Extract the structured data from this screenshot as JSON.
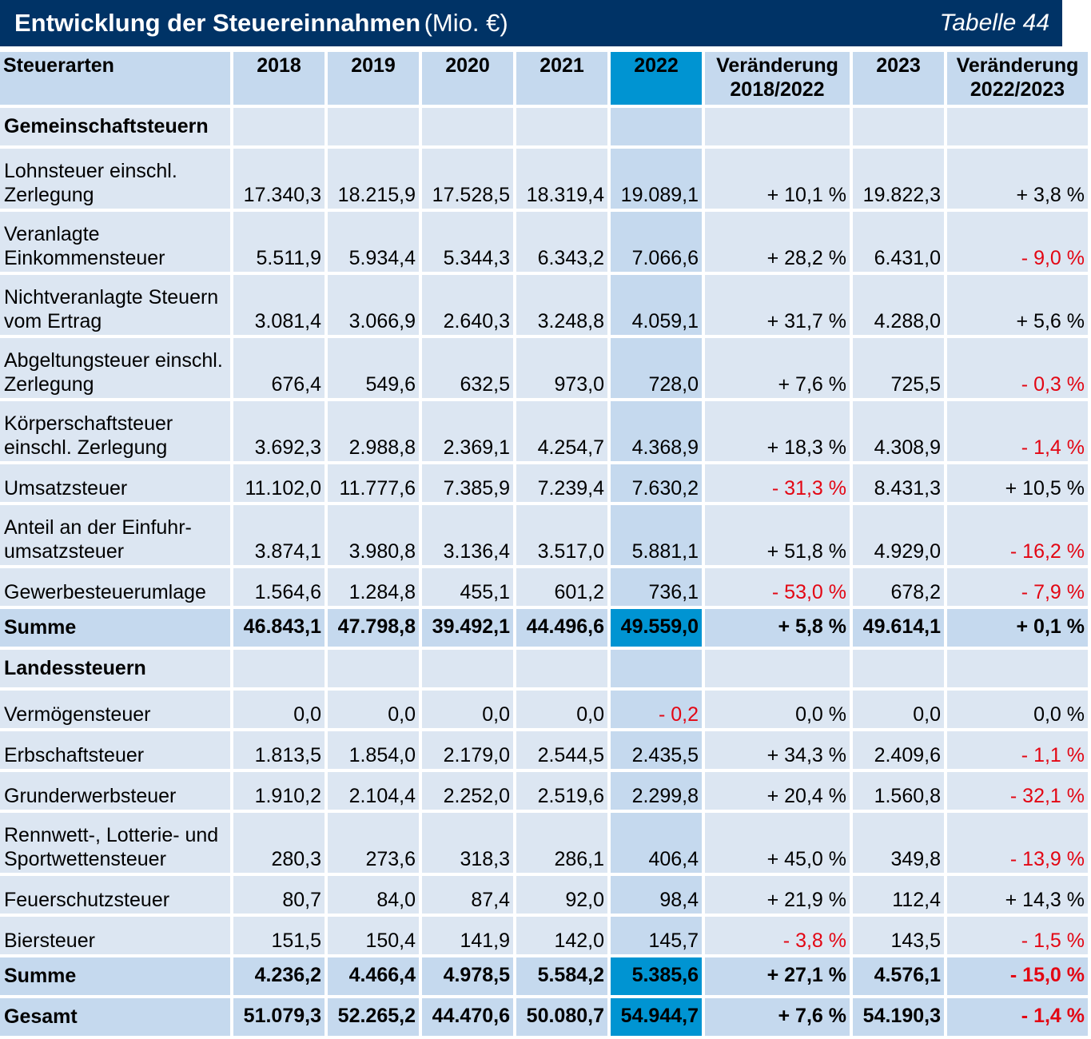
{
  "header": {
    "title": "Entwicklung der Steuereinnahmen",
    "unit": "(Mio. €)",
    "table_label": "Tabelle 44"
  },
  "columns": [
    "Steuerarten",
    "2018",
    "2019",
    "2020",
    "2021",
    "2022",
    "Veränderung 2018/2022",
    "2023",
    "Veränderung 2022/2023"
  ],
  "rows": [
    {
      "type": "section",
      "label": "Gemeinschaftsteuern",
      "cells": [
        "",
        "",
        "",
        "",
        "",
        "",
        "",
        ""
      ]
    },
    {
      "type": "data",
      "label": "Lohnsteuer einschl. Zerlegung",
      "cells": [
        "17.340,3",
        "18.215,9",
        "17.528,5",
        "18.319,4",
        "19.089,1",
        "+ 10,1 %",
        "19.822,3",
        "+ 3,8 %"
      ]
    },
    {
      "type": "data",
      "label": "Veranlagte Einkommensteuer",
      "cells": [
        "5.511,9",
        "5.934,4",
        "5.344,3",
        "6.343,2",
        "7.066,6",
        "+ 28,2 %",
        "6.431,0",
        "- 9,0 %"
      ]
    },
    {
      "type": "data",
      "label": "Nichtveranlagte Steuern vom Ertrag",
      "cells": [
        "3.081,4",
        "3.066,9",
        "2.640,3",
        "3.248,8",
        "4.059,1",
        "+ 31,7 %",
        "4.288,0",
        "+ 5,6 %"
      ]
    },
    {
      "type": "data",
      "label": "Abgeltungsteuer einschl. Zerlegung",
      "cells": [
        "676,4",
        "549,6",
        "632,5",
        "973,0",
        "728,0",
        "+ 7,6 %",
        "725,5",
        "- 0,3 %"
      ]
    },
    {
      "type": "data",
      "label": "Körperschaftsteuer einschl. Zerlegung",
      "cells": [
        "3.692,3",
        "2.988,8",
        "2.369,1",
        "4.254,7",
        "4.368,9",
        "+ 18,3 %",
        "4.308,9",
        "- 1,4 %"
      ]
    },
    {
      "type": "data",
      "label": "Umsatzsteuer",
      "cells": [
        "11.102,0",
        "11.777,6",
        "7.385,9",
        "7.239,4",
        "7.630,2",
        "- 31,3 %",
        "8.431,3",
        "+ 10,5 %"
      ]
    },
    {
      "type": "data",
      "label": "Anteil an der Einfuhr-umsatzsteuer",
      "cells": [
        "3.874,1",
        "3.980,8",
        "3.136,4",
        "3.517,0",
        "5.881,1",
        "+ 51,8 %",
        "4.929,0",
        "- 16,2 %"
      ]
    },
    {
      "type": "data",
      "label": "Gewerbesteuerumlage",
      "cells": [
        "1.564,6",
        "1.284,8",
        "455,1",
        "601,2",
        "736,1",
        "- 53,0 %",
        "678,2",
        "- 7,9 %"
      ]
    },
    {
      "type": "sum",
      "label": "Summe",
      "cells": [
        "46.843,1",
        "47.798,8",
        "39.492,1",
        "44.496,6",
        "49.559,0",
        "+ 5,8 %",
        "49.614,1",
        "+ 0,1 %"
      ]
    },
    {
      "type": "section",
      "label": "Landessteuern",
      "cells": [
        "",
        "",
        "",
        "",
        "",
        "",
        "",
        ""
      ]
    },
    {
      "type": "data",
      "label": "Vermögensteuer",
      "cells": [
        "0,0",
        "0,0",
        "0,0",
        "0,0",
        "- 0,2",
        "0,0 %",
        "0,0",
        "0,0 %"
      ]
    },
    {
      "type": "data",
      "label": "Erbschaftsteuer",
      "cells": [
        "1.813,5",
        "1.854,0",
        "2.179,0",
        "2.544,5",
        "2.435,5",
        "+ 34,3 %",
        "2.409,6",
        "- 1,1 %"
      ]
    },
    {
      "type": "data",
      "label": "Grunderwerbsteuer",
      "cells": [
        "1.910,2",
        "2.104,4",
        "2.252,0",
        "2.519,6",
        "2.299,8",
        "+ 20,4 %",
        "1.560,8",
        "- 32,1 %"
      ]
    },
    {
      "type": "data",
      "label": "Rennwett-, Lotterie- und Sportwettensteuer",
      "cells": [
        "280,3",
        "273,6",
        "318,3",
        "286,1",
        "406,4",
        "+ 45,0 %",
        "349,8",
        "- 13,9 %"
      ]
    },
    {
      "type": "data",
      "label": "Feuerschutzsteuer",
      "cells": [
        "80,7",
        "84,0",
        "87,4",
        "92,0",
        "98,4",
        "+ 21,9 %",
        "112,4",
        "+ 14,3 %"
      ]
    },
    {
      "type": "data",
      "label": "Biersteuer",
      "cells": [
        "151,5",
        "150,4",
        "141,9",
        "142,0",
        "145,7",
        "- 3,8 %",
        "143,5",
        "- 1,5 %"
      ]
    },
    {
      "type": "sum",
      "label": "Summe",
      "cells": [
        "4.236,2",
        "4.466,4",
        "4.978,5",
        "5.584,2",
        "5.385,6",
        "+ 27,1 %",
        "4.576,1",
        "- 15,0 %"
      ]
    },
    {
      "type": "sum",
      "label": "Gesamt",
      "cells": [
        "51.079,3",
        "52.265,2",
        "44.470,6",
        "50.080,7",
        "54.944,7",
        "+ 7,6 %",
        "54.190,3",
        "- 1,4 %"
      ]
    }
  ],
  "colors": {
    "title_bg": "#003366",
    "header_bg": "#c5d9ee",
    "cell_bg": "#dce6f2",
    "highlight_bg": "#0094d2",
    "negative_text": "#e30613"
  }
}
